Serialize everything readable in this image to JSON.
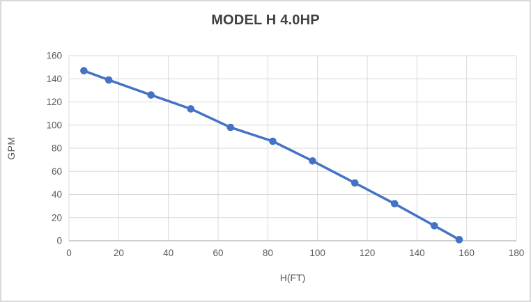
{
  "chart_data": {
    "type": "line",
    "title": "MODEL H 4.0HP",
    "xlabel": "H(FT)",
    "ylabel": "GPM",
    "x": [
      6,
      16,
      33,
      49,
      65,
      82,
      98,
      115,
      131,
      147,
      157
    ],
    "y": [
      147,
      139,
      126,
      114,
      98,
      86,
      69,
      50,
      32,
      13,
      1
    ],
    "xlim": [
      0,
      180
    ],
    "ylim": [
      0,
      160
    ],
    "x_ticks": [
      0,
      20,
      40,
      60,
      80,
      100,
      120,
      140,
      160,
      180
    ],
    "y_ticks": [
      0,
      20,
      40,
      60,
      80,
      100,
      120,
      140,
      160
    ],
    "grid": true,
    "legend": "none",
    "marker": "circle",
    "colors": {
      "series": "#4472C4",
      "gridline": "#D9D9D9",
      "axis_line": "#BFBFBF",
      "tick_label": "#595959",
      "axis_title": "#595959",
      "title": "#404040",
      "background": "#FFFFFF"
    }
  }
}
